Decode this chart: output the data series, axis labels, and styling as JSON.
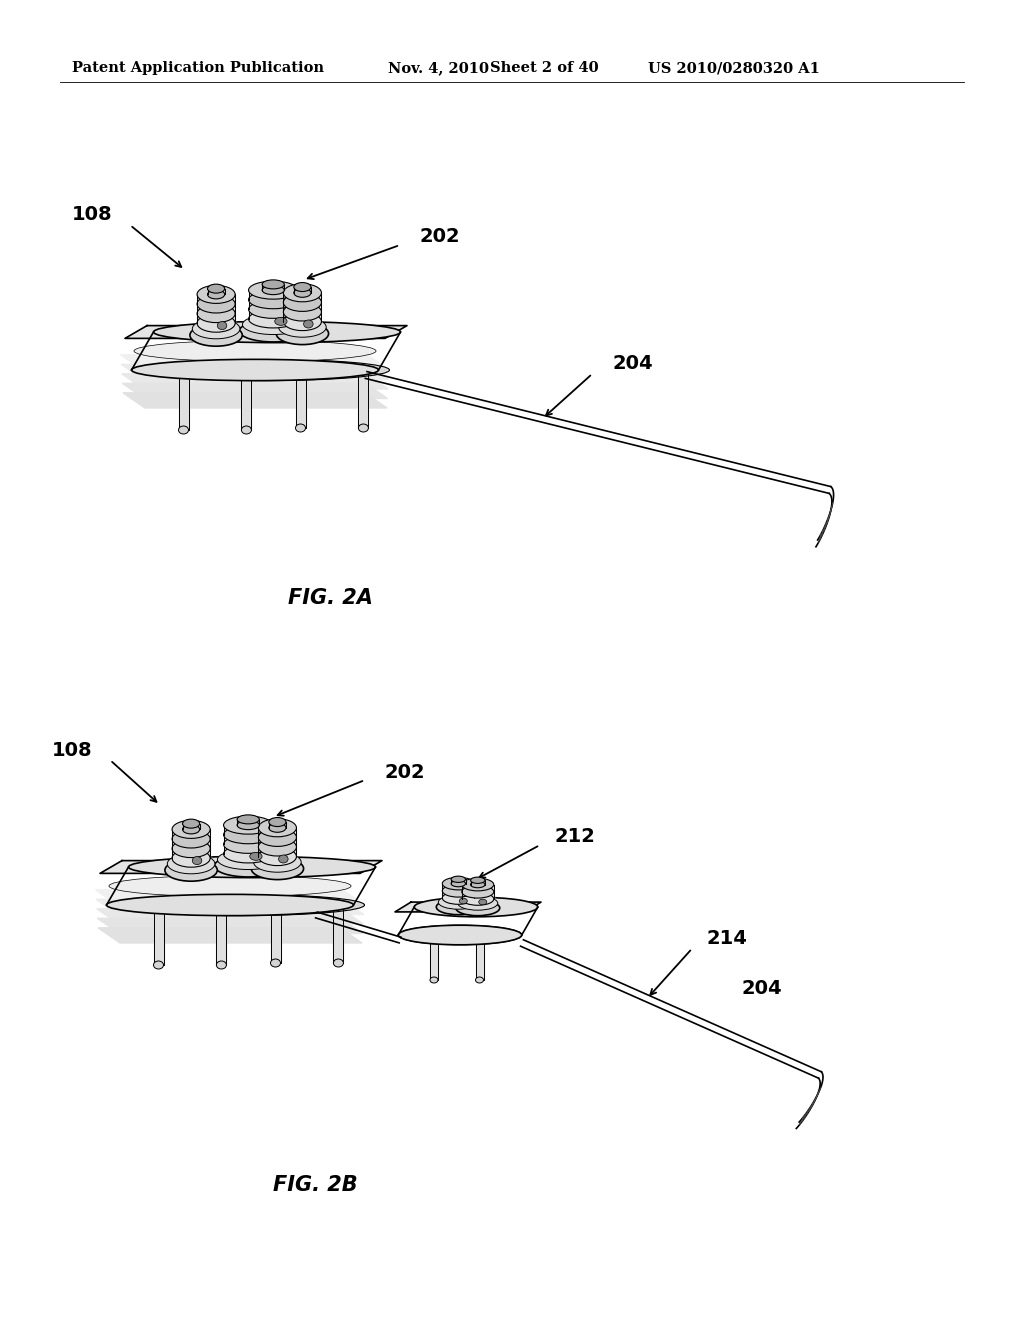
{
  "bg_color": "#ffffff",
  "header_text": "Patent Application Publication",
  "header_date": "Nov. 4, 2010",
  "header_sheet": "Sheet 2 of 40",
  "header_patent": "US 2010/0280320 A1",
  "fig2a_label": "FIG. 2A",
  "fig2b_label": "FIG. 2B",
  "label_108a": "108",
  "label_202a": "202",
  "label_204a": "204",
  "label_108b": "108",
  "label_202b": "202",
  "label_212b": "212",
  "label_214b": "214",
  "label_204b": "204",
  "line_color": "#000000",
  "line_width": 1.2,
  "thin_line": 0.7,
  "text_color": "#000000",
  "header_fontsize": 10.5,
  "label_fontsize": 14,
  "caption_fontsize": 14,
  "face_color": "#f5f5f5",
  "side_color": "#e0e0e0",
  "top_color": "#ececec",
  "cyl_color": "#e8e8e8",
  "dark_line": "#111111"
}
